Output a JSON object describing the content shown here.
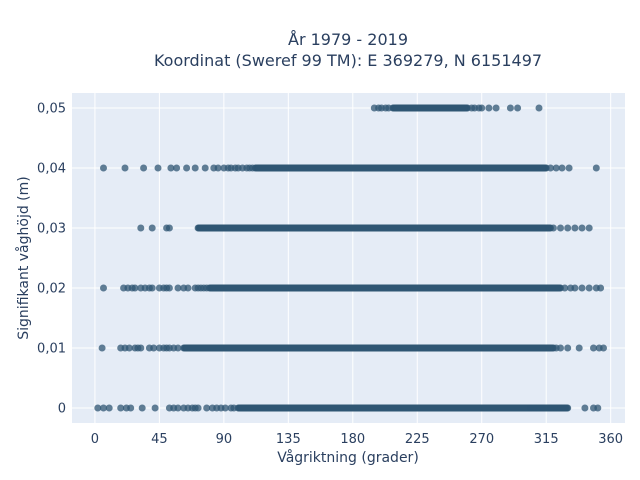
{
  "chart_data": {
    "type": "scatter",
    "title_line1": "År 1979 - 2019",
    "title_line2": "Koordinat (Sweref 99 TM): E 369279, N 6151497",
    "xlabel": "Vågriktning (grader)",
    "ylabel": "Signifikant våghöjd (m)",
    "xlim": [
      -16,
      370
    ],
    "ylim": [
      -0.0025,
      0.0525
    ],
    "xticks": [
      0,
      45,
      90,
      135,
      180,
      225,
      270,
      315,
      360
    ],
    "xtick_labels": [
      "0",
      "45",
      "90",
      "135",
      "180",
      "225",
      "270",
      "315",
      "360"
    ],
    "yticks": [
      0,
      0.01,
      0.02,
      0.03,
      0.04,
      0.05
    ],
    "ytick_labels": [
      "0",
      "0,01",
      "0,02",
      "0,03",
      "0,04",
      "0,05"
    ],
    "grid": true,
    "marker_color": "#2f5673",
    "plot_bg": "#e5ecf6",
    "rows": [
      {
        "y": 0,
        "dense": [
          [
            100,
            330
          ]
        ],
        "points": [
          2,
          6,
          10,
          18,
          22,
          25,
          33,
          42,
          52,
          55,
          58,
          62,
          65,
          68,
          70,
          72,
          78,
          82,
          85,
          88,
          91,
          95,
          97,
          304,
          308,
          312,
          318,
          322,
          325,
          328,
          342,
          348,
          351
        ]
      },
      {
        "y": 0.01,
        "dense": [
          [
            62,
            320
          ]
        ],
        "points": [
          5,
          18,
          21,
          24,
          28,
          30,
          32,
          38,
          41,
          45,
          48,
          50,
          52,
          55,
          58,
          322,
          325,
          330,
          338,
          348,
          352,
          355
        ]
      },
      {
        "y": 0.02,
        "dense": [
          [
            80,
            325
          ]
        ],
        "points": [
          6,
          20,
          23,
          26,
          28,
          32,
          35,
          38,
          40,
          45,
          48,
          50,
          52,
          58,
          62,
          65,
          70,
          72,
          74,
          76,
          78,
          328,
          332,
          335,
          340,
          345,
          350,
          353
        ]
      },
      {
        "y": 0.03,
        "dense": [
          [
            72,
            318
          ]
        ],
        "points": [
          32,
          40,
          50,
          52,
          320,
          325,
          330,
          335,
          340,
          345
        ]
      },
      {
        "y": 0.04,
        "dense": [
          [
            112,
            315
          ]
        ],
        "points": [
          6,
          21,
          34,
          44,
          53,
          57,
          64,
          70,
          77,
          83,
          86,
          90,
          93,
          95,
          98,
          100,
          103,
          106,
          108,
          110,
          318,
          322,
          326,
          331,
          350
        ]
      },
      {
        "y": 0.05,
        "dense": [
          [
            208,
            260
          ]
        ],
        "points": [
          195,
          198,
          200,
          203,
          205,
          263,
          265,
          268,
          270,
          275,
          280,
          290,
          295,
          310
        ]
      }
    ]
  }
}
